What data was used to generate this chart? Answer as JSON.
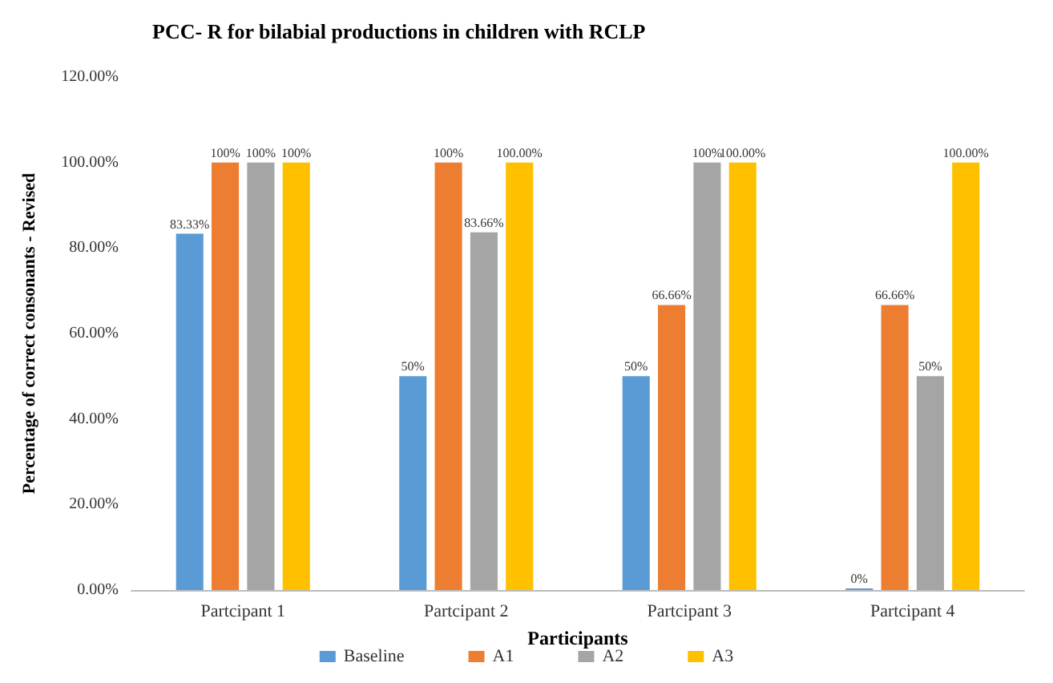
{
  "chart_data": {
    "type": "bar",
    "title": "PCC- R for bilabial productions in children with RCLP",
    "xlabel": "Participants",
    "ylabel": "Percentage of correct consonants - Revised",
    "categories": [
      "Partcipant 1",
      "Partcipant 2",
      "Partcipant 3",
      "Partcipant 4"
    ],
    "series": [
      {
        "name": "Baseline",
        "color": "#5b9bd5",
        "values": [
          83.33,
          50,
          50,
          0
        ],
        "value_labels": [
          "83.33%",
          "50%",
          "50%",
          "0%"
        ]
      },
      {
        "name": "A1",
        "color": "#ed7d31",
        "values": [
          100,
          100,
          66.66,
          66.66
        ],
        "value_labels": [
          "100%",
          "100%",
          "66.66%",
          "66.66%"
        ]
      },
      {
        "name": "A2",
        "color": "#a5a5a5",
        "values": [
          100,
          83.66,
          100,
          50
        ],
        "value_labels": [
          "100%",
          "83.66%",
          "100%",
          "50%"
        ]
      },
      {
        "name": "A3",
        "color": "#ffc000",
        "values": [
          100,
          100,
          100,
          100
        ],
        "value_labels": [
          "100%",
          "100.00%",
          "100.00%",
          "100.00%"
        ]
      }
    ],
    "ylim": [
      0,
      120
    ],
    "yticks": [
      {
        "value": 0,
        "label": "0.00%"
      },
      {
        "value": 20,
        "label": "20.00%"
      },
      {
        "value": 40,
        "label": "40.00%"
      },
      {
        "value": 60,
        "label": "60.00%"
      },
      {
        "value": 80,
        "label": "80.00%"
      },
      {
        "value": 100,
        "label": "100.00%"
      },
      {
        "value": 120,
        "label": "120.00%"
      }
    ],
    "grid": false,
    "legend": "bottom"
  }
}
